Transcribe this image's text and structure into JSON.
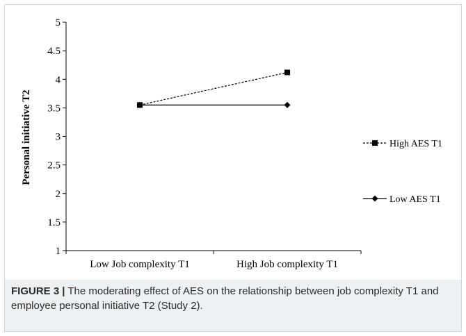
{
  "chart_data": {
    "type": "line",
    "categories": [
      "Low Job complexity T1",
      "High Job complexity T1"
    ],
    "ylabel": "Personal initiative  T2",
    "xlabel": "",
    "ylim": [
      1,
      5
    ],
    "yticks": [
      "1",
      "1.5",
      "2",
      "2.5",
      "3",
      "3.5",
      "4",
      "4.5",
      "5"
    ],
    "grid": false,
    "legend_position": "right",
    "series": [
      {
        "name": "High AES T1",
        "values": [
          3.55,
          4.12
        ],
        "line_style": "dashed",
        "marker": "square",
        "color": "#000000"
      },
      {
        "name": "Low AES T1",
        "values": [
          3.55,
          3.55
        ],
        "line_style": "solid",
        "marker": "diamond",
        "color": "#000000"
      }
    ]
  },
  "caption": {
    "label": "FIGURE 3",
    "separator": "|",
    "text": "The moderating effect of AES on the relationship between job complexity T1 and employee personal initiative T2 (Study 2)."
  }
}
